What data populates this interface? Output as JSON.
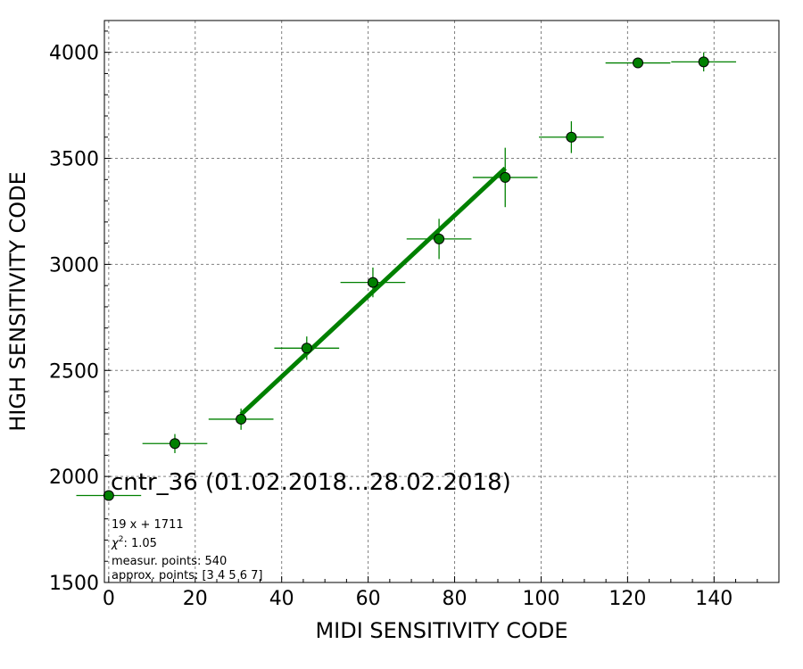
{
  "chart_data": {
    "type": "scatter",
    "title": "cntr_36 (01.02.2018...28.02.2018)",
    "xlabel": "MIDI SENSITIVITY CODE",
    "ylabel": "HIGH SENSITIVITY CODE",
    "xlim": [
      -1,
      155
    ],
    "ylim": [
      1500,
      4150
    ],
    "xticks": [
      0,
      20,
      40,
      60,
      80,
      100,
      120,
      140
    ],
    "yticks": [
      1500,
      2000,
      2500,
      3000,
      3500,
      4000
    ],
    "grid": true,
    "colors": {
      "points": "#008000",
      "fit": "#008000"
    },
    "series": [
      {
        "x": [
          0,
          15.3,
          30.6,
          45.8,
          61.1,
          76.4,
          91.7,
          107,
          122.4,
          137.6
        ],
        "y": [
          1910,
          2155,
          2270,
          2605,
          2915,
          3120,
          3410,
          3600,
          3950,
          3955
        ],
        "xerr": [
          7.5,
          7.5,
          7.5,
          7.5,
          7.5,
          7.5,
          7.5,
          7.5,
          7.5,
          7.5
        ],
        "yerr": [
          0,
          45,
          50,
          55,
          70,
          95,
          140,
          75,
          15,
          45
        ]
      }
    ],
    "fit": {
      "x": [
        30.6,
        91.7
      ],
      "y": [
        2292,
        3453
      ]
    },
    "annotations": [
      "19 x + 1711",
      "1.05",
      "measur. points: 540",
      "approx. points: [3 4 5 6 7]"
    ],
    "chi_label": "χ",
    "chi_sup": "2",
    "chi_sep": ": "
  }
}
